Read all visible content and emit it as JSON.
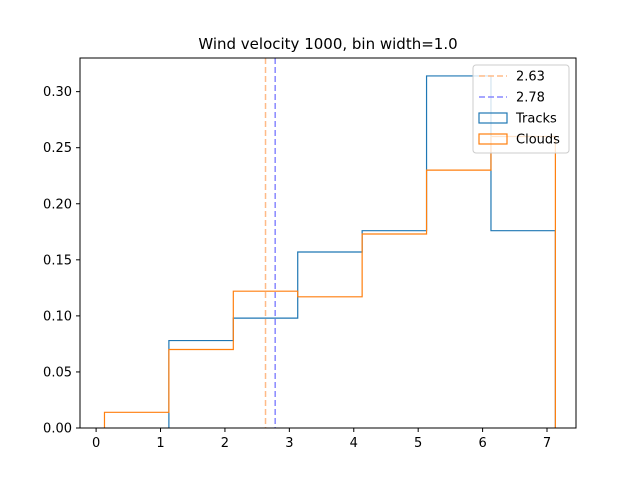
{
  "chart_data": {
    "type": "step-histogram",
    "title": "Wind velocity 1000, bin width=1.0",
    "xlabel": "",
    "ylabel": "",
    "xlim": [
      -0.25,
      7.45
    ],
    "ylim": [
      0,
      0.33
    ],
    "xticks": [
      0,
      1,
      2,
      3,
      4,
      5,
      6,
      7
    ],
    "yticks": [
      0.0,
      0.05,
      0.1,
      0.15,
      0.2,
      0.25,
      0.3
    ],
    "ytick_labels": [
      "0.00",
      "0.05",
      "0.10",
      "0.15",
      "0.20",
      "0.25",
      "0.30"
    ],
    "grid": false,
    "legend_position": "top-right",
    "vlines": [
      {
        "label": "2.63",
        "x": 2.63,
        "color": "#ffbb88"
      },
      {
        "label": "2.78",
        "x": 2.78,
        "color": "#8888ff"
      }
    ],
    "series": [
      {
        "name": "Tracks",
        "color": "#1f77b4",
        "edges": [
          1.13,
          2.13,
          3.13,
          4.13,
          5.13,
          6.13,
          7.13
        ],
        "values": [
          0.078,
          0.098,
          0.157,
          0.176,
          0.314,
          0.176
        ]
      },
      {
        "name": "Clouds",
        "color": "#ff7f0e",
        "edges": [
          0.13,
          1.13,
          2.13,
          3.13,
          4.13,
          5.13,
          6.13,
          7.13
        ],
        "values": [
          0.014,
          0.07,
          0.122,
          0.117,
          0.173,
          0.23,
          0.26
        ]
      }
    ]
  }
}
